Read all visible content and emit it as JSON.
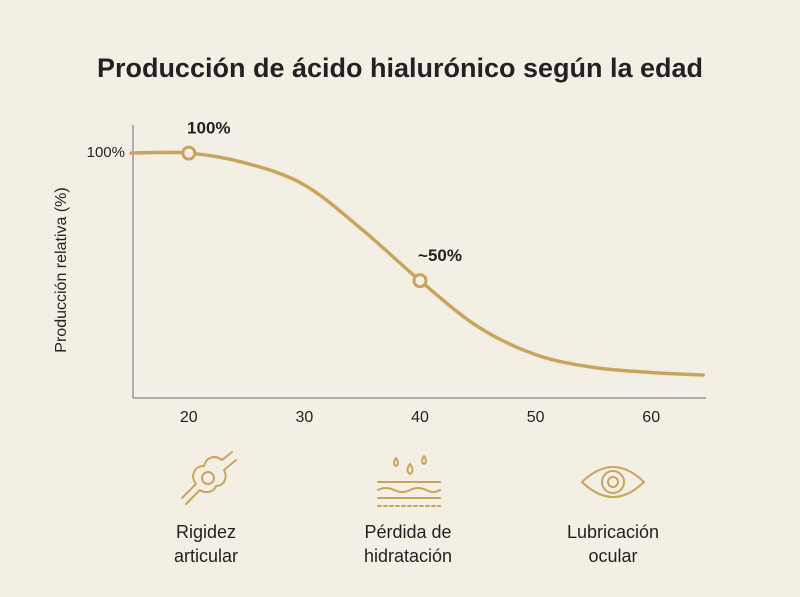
{
  "chart_data": {
    "type": "line",
    "title": "Producción de ácido hialurónico según la edad",
    "y_label": "Producción relativa (%)",
    "x": [
      15,
      20,
      25,
      30,
      35,
      40,
      45,
      50,
      55,
      60,
      64.5
    ],
    "series": [
      {
        "name": "Producción relativa",
        "color": "#c9a45c",
        "values": [
          100,
          100,
          96,
          87.5,
          70,
          50,
          32,
          21,
          16,
          14,
          13
        ]
      }
    ],
    "xlim": [
      15,
      65
    ],
    "xticks": [
      20,
      30,
      40,
      50,
      60
    ],
    "ylim": [
      4,
      111
    ],
    "yticks": [
      {
        "value": 100,
        "label": "100%"
      }
    ],
    "annotations": [
      {
        "x": 20,
        "y": 100,
        "text": "100%"
      },
      {
        "x": 40,
        "y": 50,
        "text": "~50%"
      }
    ]
  },
  "effects": [
    {
      "lines": [
        "Rigidez",
        "articular"
      ]
    },
    {
      "lines": [
        "Pérdida de",
        "hidratación"
      ]
    },
    {
      "lines": [
        "Lubricación",
        "ocular"
      ]
    }
  ]
}
